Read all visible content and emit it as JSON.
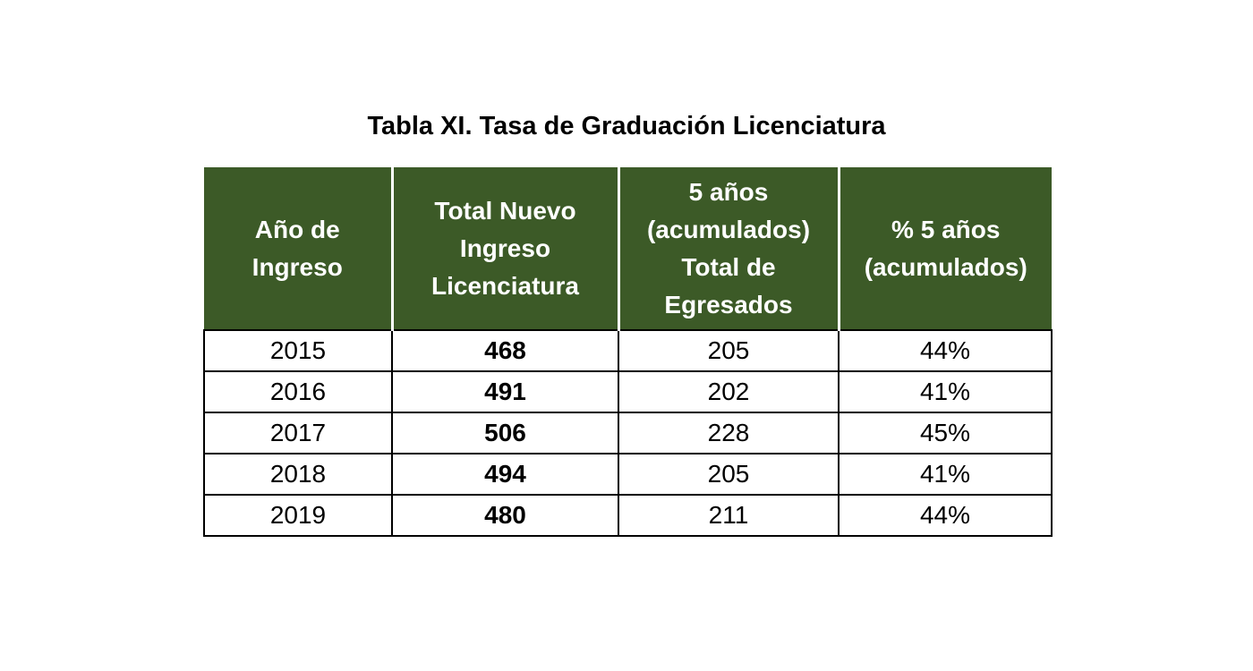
{
  "title": "Tabla XI. Tasa de Graduación Licenciatura",
  "colors": {
    "header_background": "#3c5a27",
    "header_text": "#ffffff",
    "border": "#000000"
  },
  "table": {
    "headers": [
      [
        "Año de",
        "Ingreso"
      ],
      [
        "Total Nuevo",
        "Ingreso",
        "Licenciatura"
      ],
      [
        "5 años",
        "(acumulados)",
        "Total de",
        "Egresados"
      ],
      [
        "% 5 años",
        "(acumulados)"
      ]
    ],
    "rows": [
      [
        "2015",
        "468",
        "205",
        "44%"
      ],
      [
        "2016",
        "491",
        "202",
        "41%"
      ],
      [
        "2017",
        "506",
        "228",
        "45%"
      ],
      [
        "2018",
        "494",
        "205",
        "41%"
      ],
      [
        "2019",
        "480",
        "211",
        "44%"
      ]
    ]
  }
}
